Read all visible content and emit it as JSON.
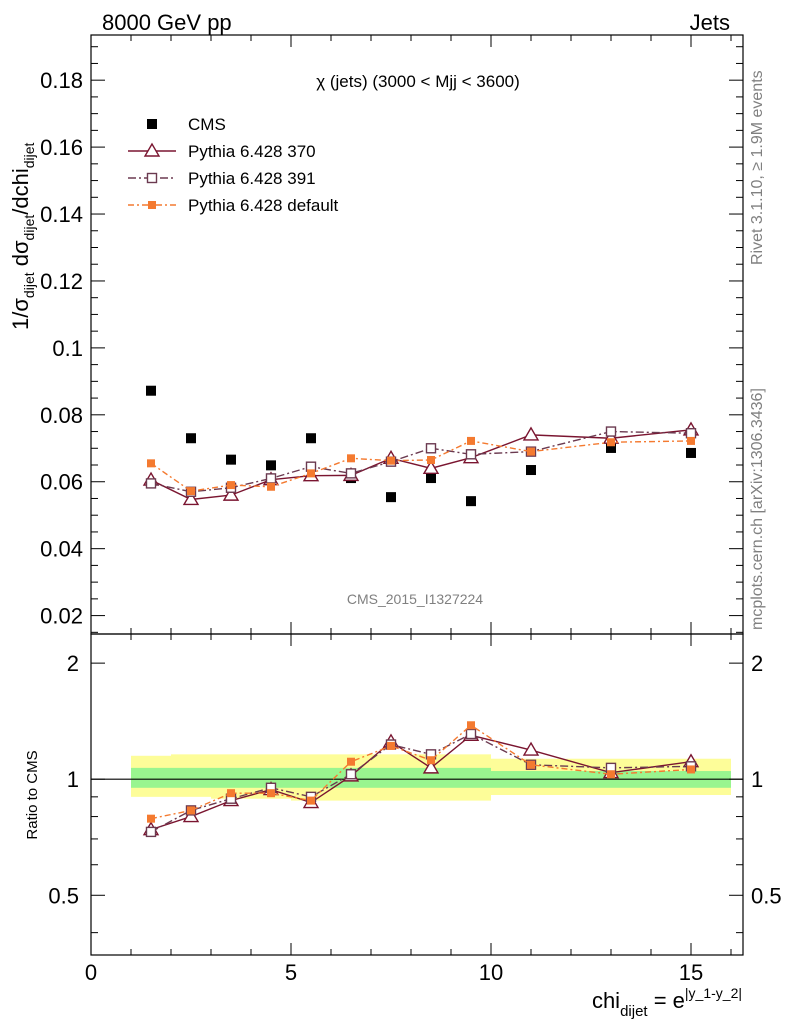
{
  "header": {
    "left": "8000 GeV pp",
    "right": "Jets"
  },
  "side_labels": {
    "rivet": "Rivet 3.1.10, ≥ 1.9M events",
    "mcplots": "mcplots.cern.ch [arXiv:1306.3436]"
  },
  "chart_data": [
    {
      "type": "scatter",
      "title": "χ (jets) (3000 < Mjj < 3600)",
      "watermark": "CMS_2015_I1327224",
      "ylabel": "1/σ_dijet dσ_dijet/dchi_dijet",
      "xlabel": "",
      "xlim": [
        0,
        16.3
      ],
      "ylim": [
        0.0145,
        0.1935
      ],
      "grid": false,
      "legend_position": "top-left",
      "yticks": [
        "0.02",
        "0.04",
        "0.06",
        "0.08",
        "0.1",
        "0.12",
        "0.14",
        "0.16",
        "0.18"
      ],
      "x": [
        1.5,
        2.5,
        3.5,
        4.5,
        5.5,
        6.5,
        7.5,
        8.5,
        9.5,
        11,
        13,
        15
      ],
      "series": [
        {
          "name": "CMS",
          "style": "data",
          "color": "#000000",
          "values": [
            0.0872,
            0.073,
            0.0666,
            0.0649,
            0.073,
            0.0611,
            0.0554,
            0.0611,
            0.0542,
            0.0635,
            0.0701,
            0.0686
          ]
        },
        {
          "name": "Pythia 6.428 370",
          "style": "solid-triangle",
          "color": "#7a1530",
          "values": [
            0.0605,
            0.0547,
            0.056,
            0.0606,
            0.0618,
            0.0619,
            0.067,
            0.064,
            0.0672,
            0.074,
            0.073,
            0.0755
          ]
        },
        {
          "name": "Pythia 6.428 391",
          "style": "dashdot-square",
          "color": "#6b3a50",
          "values": [
            0.0595,
            0.057,
            0.0582,
            0.061,
            0.0645,
            0.0625,
            0.066,
            0.07,
            0.0682,
            0.069,
            0.075,
            0.0745
          ]
        },
        {
          "name": "Pythia 6.428 default",
          "style": "dashdot-filled",
          "color": "#f47a30",
          "values": [
            0.0655,
            0.0572,
            0.059,
            0.0585,
            0.0625,
            0.067,
            0.0663,
            0.0665,
            0.0722,
            0.069,
            0.0718,
            0.0722
          ]
        }
      ]
    },
    {
      "type": "line",
      "title": "",
      "ylabel": "Ratio to CMS",
      "xlabel": "chi_dijet = e^|y_1-y_2|",
      "xlim": [
        0,
        16.3
      ],
      "ylim": [
        0.35,
        2.38
      ],
      "ylog": true,
      "grid": false,
      "yticks": [
        "0.5",
        "1",
        "2"
      ],
      "xticks": [
        "0",
        "5",
        "10",
        "15"
      ],
      "bands": {
        "bin_edges": [
          1,
          2,
          3,
          4,
          5,
          6,
          7,
          8,
          9,
          10,
          12,
          14,
          16
        ],
        "inner": [
          [
            0.95,
            1.07
          ],
          [
            0.95,
            1.07
          ],
          [
            0.95,
            1.07
          ],
          [
            0.95,
            1.07
          ],
          [
            0.95,
            1.07
          ],
          [
            0.95,
            1.07
          ],
          [
            0.95,
            1.07
          ],
          [
            0.95,
            1.07
          ],
          [
            0.95,
            1.07
          ],
          [
            0.95,
            1.05
          ],
          [
            0.95,
            1.05
          ],
          [
            0.95,
            1.05
          ]
        ],
        "outer": [
          [
            0.9,
            1.15
          ],
          [
            0.9,
            1.16
          ],
          [
            0.89,
            1.16
          ],
          [
            0.89,
            1.16
          ],
          [
            0.88,
            1.16
          ],
          [
            0.88,
            1.16
          ],
          [
            0.88,
            1.16
          ],
          [
            0.88,
            1.16
          ],
          [
            0.88,
            1.16
          ],
          [
            0.91,
            1.13
          ],
          [
            0.91,
            1.13
          ],
          [
            0.91,
            1.13
          ]
        ],
        "inner_color": "#99f58f",
        "outer_color": "#fdfd99"
      },
      "x": [
        1.5,
        2.5,
        3.5,
        4.5,
        5.5,
        6.5,
        7.5,
        8.5,
        9.5,
        11,
        13,
        15
      ],
      "series": [
        {
          "name": "Pythia 6.428 370",
          "color": "#7a1530",
          "values": [
            0.74,
            0.8,
            0.88,
            0.94,
            0.87,
            1.02,
            1.25,
            1.07,
            1.3,
            1.19,
            1.04,
            1.11
          ]
        },
        {
          "name": "Pythia 6.428 391",
          "color": "#6b3a50",
          "values": [
            0.73,
            0.83,
            0.89,
            0.95,
            0.9,
            1.03,
            1.23,
            1.16,
            1.31,
            1.09,
            1.07,
            1.08
          ]
        },
        {
          "name": "Pythia 6.428 default",
          "color": "#f47a30",
          "values": [
            0.79,
            0.83,
            0.92,
            0.92,
            0.88,
            1.11,
            1.22,
            1.12,
            1.38,
            1.09,
            1.03,
            1.06
          ]
        }
      ]
    }
  ]
}
